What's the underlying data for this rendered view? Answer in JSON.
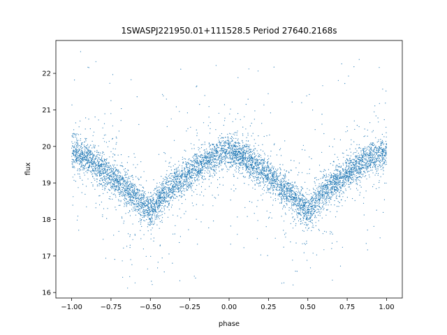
{
  "chart_data": {
    "type": "scatter",
    "title": "1SWASPJ221950.01+111528.5 Period 27640.2168s",
    "xlabel": "phase",
    "ylabel": "flux",
    "xlim": [
      -1.1,
      1.1
    ],
    "ylim": [
      15.85,
      22.9
    ],
    "xticks": [
      -1.0,
      -0.75,
      -0.5,
      -0.25,
      0.0,
      0.25,
      0.5,
      0.75,
      1.0
    ],
    "xtick_labels": [
      "−1.00",
      "−0.75",
      "−0.50",
      "−0.25",
      "0.00",
      "0.25",
      "0.50",
      "0.75",
      "1.00"
    ],
    "yticks": [
      16,
      17,
      18,
      19,
      20,
      21,
      22
    ],
    "ytick_labels": [
      "16",
      "17",
      "18",
      "19",
      "20",
      "21",
      "22"
    ],
    "grid": false,
    "legend": "none",
    "marker_color": "#1f77b4",
    "series": [
      {
        "phase": [
          -1.0,
          -0.9,
          -0.8,
          -0.7,
          -0.6,
          -0.5,
          -0.4,
          -0.3,
          -0.2,
          -0.1,
          0.0,
          0.1,
          0.2,
          0.3,
          0.4,
          0.5,
          0.6,
          0.7,
          0.8,
          0.9,
          1.0
        ],
        "flux": [
          19.85,
          19.7,
          19.35,
          19.0,
          18.65,
          18.2,
          18.75,
          19.1,
          19.45,
          19.7,
          19.9,
          19.7,
          19.35,
          19.0,
          18.65,
          18.2,
          18.75,
          19.1,
          19.45,
          19.7,
          19.85
        ]
      }
    ]
  }
}
